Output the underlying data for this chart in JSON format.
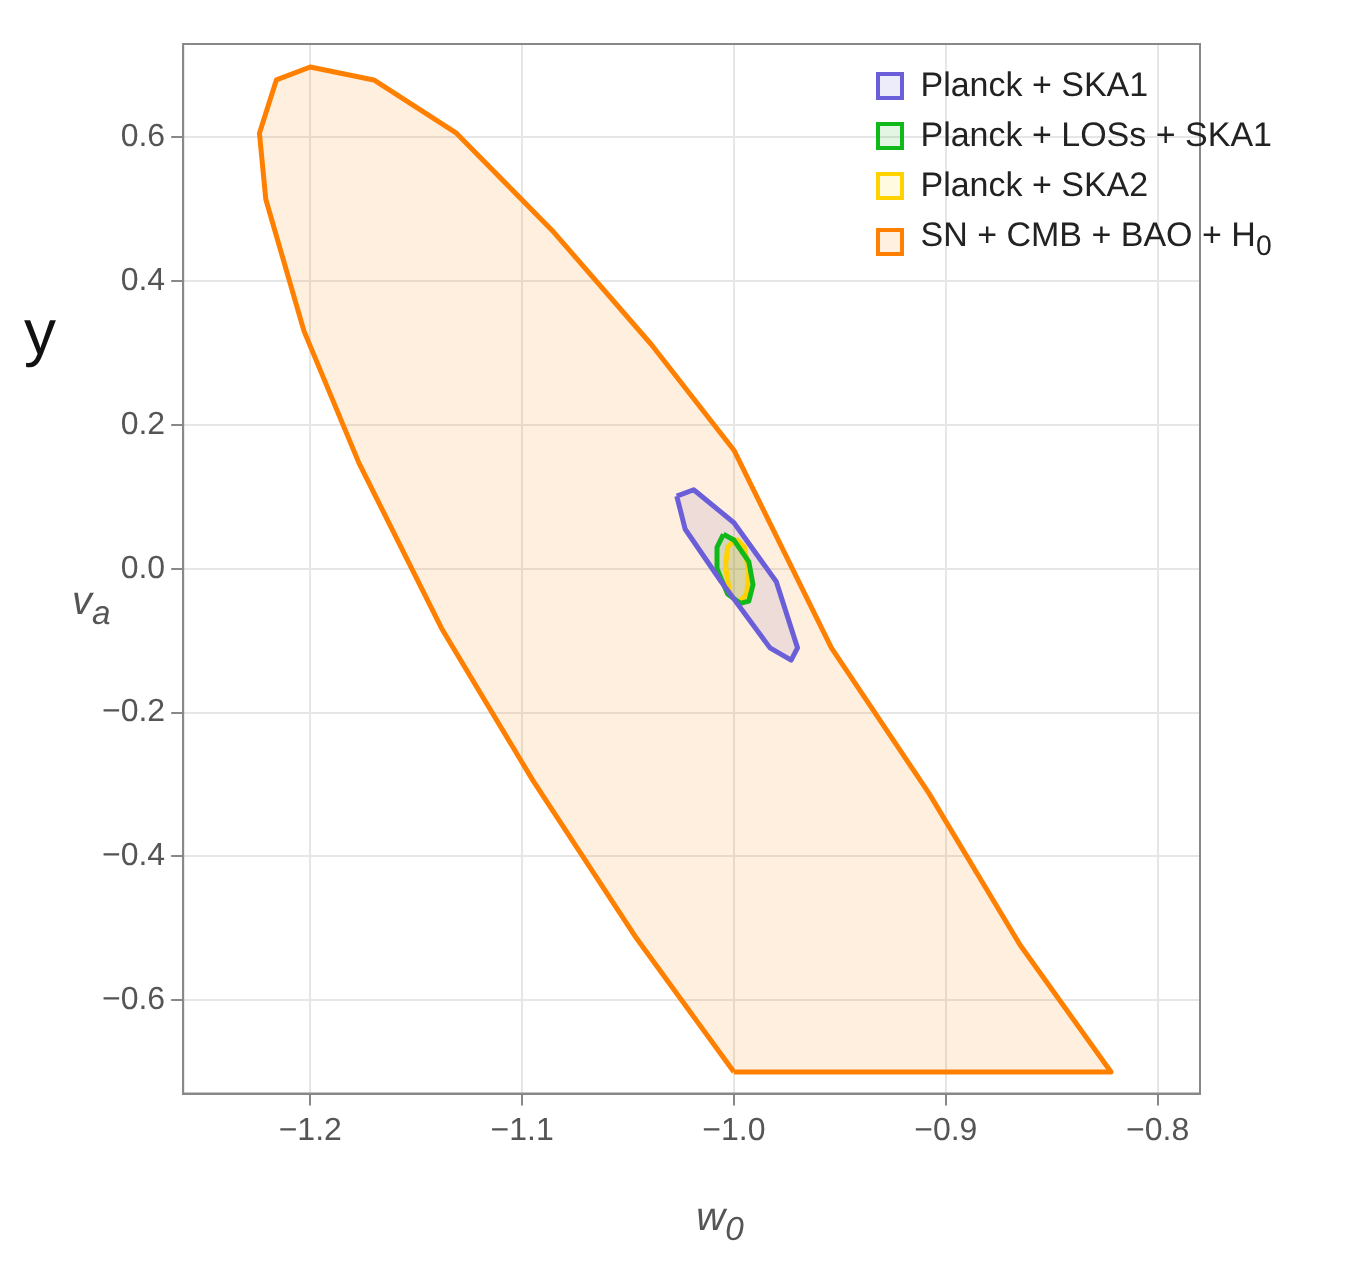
{
  "chart_data": {
    "type": "area",
    "xlabel": "w$_{0}$",
    "ylabel": "v$_{a}$",
    "annotations": [
      "y"
    ],
    "xlim": [
      -1.26,
      -0.78
    ],
    "ylim": [
      -0.73,
      0.73
    ],
    "xticks": [
      {
        "value": -1.2,
        "label": "−1.2"
      },
      {
        "value": -1.1,
        "label": "−1.1"
      },
      {
        "value": -1.0,
        "label": "−1.0"
      },
      {
        "value": -0.9,
        "label": "−0.9"
      },
      {
        "value": -0.8,
        "label": "−0.8"
      }
    ],
    "yticks": [
      {
        "value": -0.6,
        "label": "−0.6"
      },
      {
        "value": -0.4,
        "label": "−0.4"
      },
      {
        "value": -0.2,
        "label": "−0.2"
      },
      {
        "value": 0,
        "label": "0.0"
      },
      0.2,
      0.4,
      0.6
    ],
    "grid": true,
    "legend": "top right",
    "marker": "none",
    "line_style": "solid",
    "series": [
      {
        "name": "Planck + SKA1",
        "color": "#6a5fd8",
        "x": [
          -1.027,
          -1.019,
          -1.0,
          -0.98,
          -0.97,
          -0.973,
          -0.983,
          -1.006,
          -1.023,
          -1.027
        ],
        "values": [
          0.101,
          0.11,
          0.064,
          -0.018,
          -0.11,
          -0.127,
          -0.11,
          -0.018,
          0.055,
          0.101
        ]
      },
      {
        "name": "Planck + LOSs + SKA1",
        "color": "#11b81a",
        "x": [
          -1.005,
          -1.0,
          -0.993,
          -0.991,
          -0.993,
          -0.997,
          -1.003,
          -1.008,
          -1.008,
          -1.005
        ],
        "values": [
          0.048,
          0.04,
          0.01,
          -0.022,
          -0.045,
          -0.048,
          -0.035,
          0.0,
          0.03,
          0.048
        ]
      },
      {
        "name": "Planck + SKA2",
        "color": "#ffd200",
        "x": [
          -0.999,
          -0.995,
          -0.993,
          -0.994,
          -0.998,
          -1.002,
          -1.004,
          -1.003,
          -0.999
        ],
        "values": [
          0.042,
          0.03,
          -0.005,
          -0.035,
          -0.048,
          -0.035,
          0.004,
          0.03,
          0.042
        ]
      },
      {
        "name": "SN + CMB + BAO + H$_{0}$",
        "color": "#ff8000",
        "x": [
          -1.0,
          -0.822,
          -0.865,
          -0.908,
          -0.954,
          -1.0,
          -1.039,
          -1.085,
          -1.131,
          -1.17,
          -1.2,
          -1.216,
          -1.224,
          -1.221,
          -1.203,
          -1.177,
          -1.138,
          -1.095,
          -1.046,
          -1.0
        ],
        "values": [
          -0.7,
          -0.7,
          -0.523,
          -0.312,
          -0.11,
          0.165,
          0.312,
          0.468,
          0.606,
          0.68,
          0.698,
          0.68,
          0.606,
          0.514,
          0.331,
          0.147,
          -0.083,
          -0.294,
          -0.514,
          -0.7
        ]
      }
    ]
  }
}
